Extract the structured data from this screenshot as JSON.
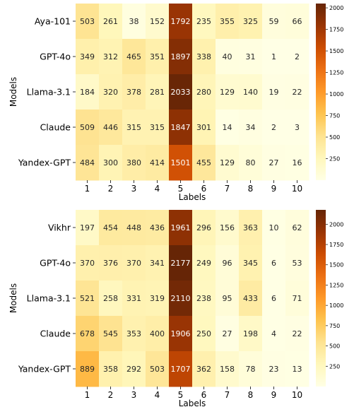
{
  "chart_data": [
    {
      "type": "heatmap",
      "xlabel": "Labels",
      "ylabel": "Models",
      "x_categories": [
        "1",
        "2",
        "3",
        "4",
        "5",
        "6",
        "7",
        "8",
        "9",
        "10"
      ],
      "y_categories": [
        "Aya-101",
        "GPT-4o",
        "Llama-3.1",
        "Claude",
        "Yandex-GPT"
      ],
      "values": [
        [
          503,
          261,
          38,
          152,
          1792,
          235,
          355,
          325,
          59,
          66
        ],
        [
          349,
          312,
          465,
          351,
          1897,
          338,
          40,
          31,
          1,
          2
        ],
        [
          184,
          320,
          378,
          281,
          2033,
          280,
          129,
          140,
          19,
          22
        ],
        [
          509,
          446,
          315,
          315,
          1847,
          301,
          14,
          34,
          2,
          3
        ],
        [
          484,
          300,
          380,
          414,
          1501,
          455,
          129,
          80,
          27,
          16
        ]
      ],
      "color_range": [
        0,
        2050
      ],
      "colorbar_ticks": [
        "250",
        "500",
        "750",
        "1000",
        "1250",
        "1500",
        "1750",
        "2000"
      ],
      "colormap": [
        "#ffffe5",
        "#fff7bc",
        "#fee391",
        "#fec44f",
        "#fe9929",
        "#ec7014",
        "#cc4c02",
        "#993404",
        "#662506"
      ]
    },
    {
      "type": "heatmap",
      "xlabel": "Labels",
      "ylabel": "Models",
      "x_categories": [
        "1",
        "2",
        "3",
        "4",
        "5",
        "6",
        "7",
        "8",
        "9",
        "10"
      ],
      "y_categories": [
        "Vikhr",
        "GPT-4o",
        "Llama-3.1",
        "Claude",
        "Yandex-GPT"
      ],
      "values": [
        [
          197,
          454,
          448,
          436,
          1961,
          296,
          156,
          363,
          10,
          62
        ],
        [
          370,
          376,
          370,
          341,
          2177,
          249,
          96,
          345,
          6,
          53
        ],
        [
          521,
          258,
          331,
          319,
          2110,
          238,
          95,
          433,
          6,
          71
        ],
        [
          678,
          545,
          353,
          400,
          1906,
          250,
          27,
          198,
          4,
          22
        ],
        [
          889,
          358,
          292,
          503,
          1707,
          362,
          158,
          78,
          23,
          13
        ]
      ],
      "color_range": [
        0,
        2177
      ],
      "colorbar_ticks": [
        "250",
        "500",
        "750",
        "1000",
        "1250",
        "1500",
        "1750",
        "2000"
      ],
      "colormap": [
        "#ffffe5",
        "#fff7bc",
        "#fee391",
        "#fec44f",
        "#fe9929",
        "#ec7014",
        "#cc4c02",
        "#993404",
        "#662506"
      ]
    }
  ]
}
